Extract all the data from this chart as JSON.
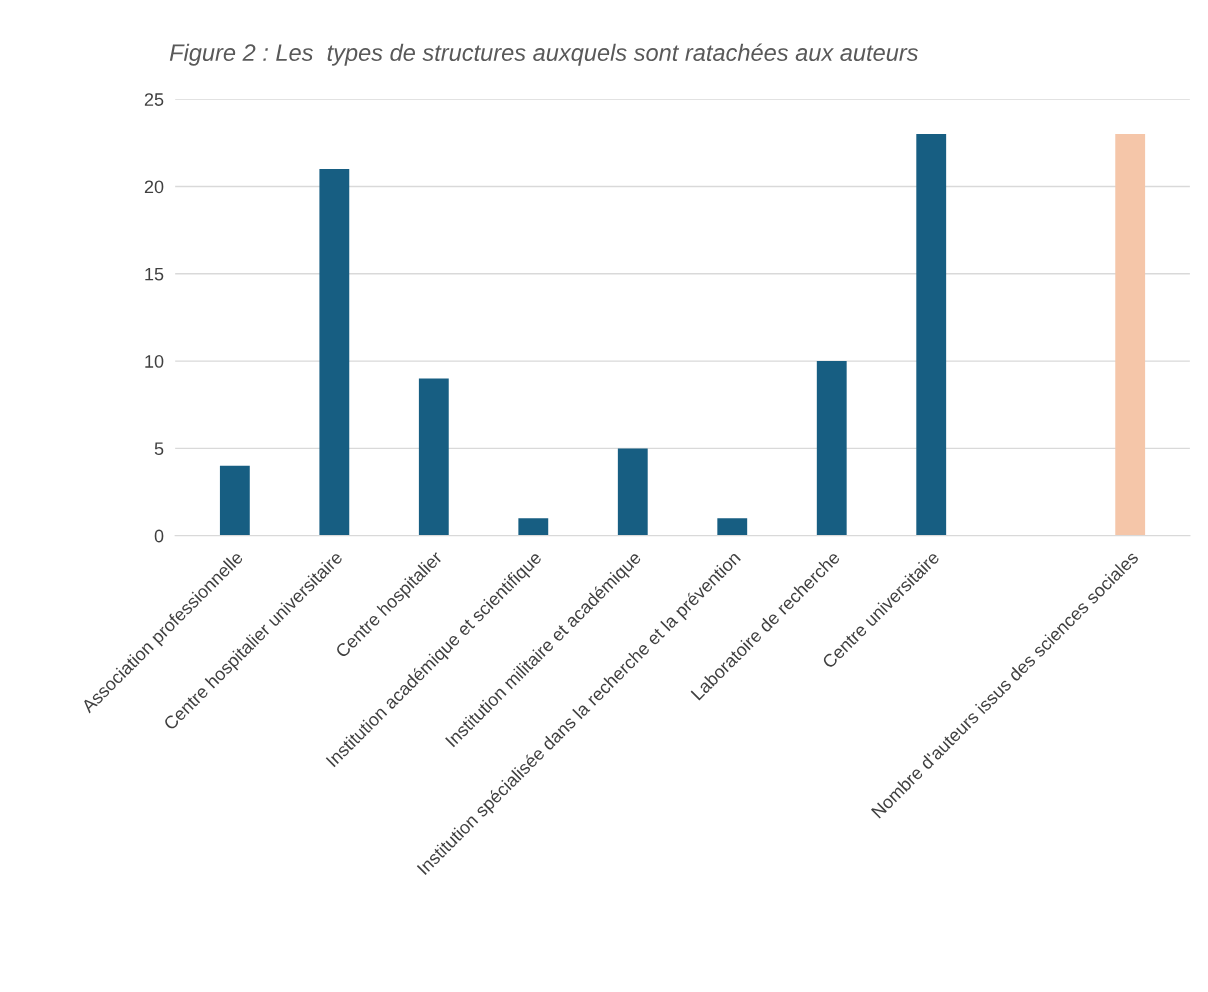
{
  "chart_data": {
    "type": "bar",
    "title": "Figure 2 : Les  types de structures auxquels sont ratachées aux auteurs",
    "categories": [
      "Association professionnelle",
      "Centre hospitalier universitaire",
      "Centre hospitalier",
      "Institution académique et scientifique",
      "Institution militaire et académique",
      "Institution spécialisée dans la recherche et la prévention",
      "Laboratoire de recherche",
      "Centre universitaire",
      null,
      "Nombre d'auteurs issus des sciences sociales"
    ],
    "values": [
      4,
      21,
      9,
      1,
      5,
      1,
      10,
      23,
      null,
      23
    ],
    "colors": [
      "#175e82",
      "#175e82",
      "#175e82",
      "#175e82",
      "#175e82",
      "#175e82",
      "#175e82",
      "#175e82",
      "#175e82",
      "#f5c6a9"
    ],
    "ylim": [
      0,
      25
    ],
    "yticks": [
      0,
      5,
      10,
      15,
      20,
      25
    ],
    "grid": "y",
    "legend": false
  }
}
